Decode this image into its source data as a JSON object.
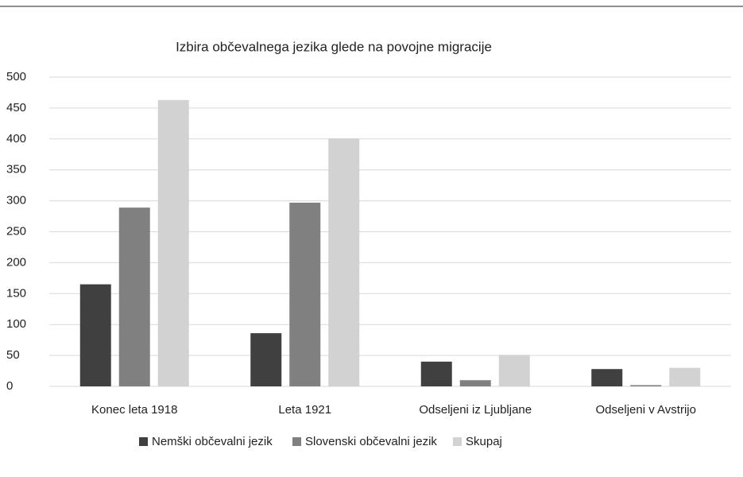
{
  "chart_data": {
    "type": "bar",
    "title": "Izbira občevalnega jezika glede na povojne migracije",
    "categories": [
      "Konec leta 1918",
      "Leta 1921",
      "Odseljeni iz Ljubljane",
      "Odseljeni v Avstrijo"
    ],
    "series": [
      {
        "name": "Nemški občevalni jezik",
        "color": "#404040",
        "values": [
          165,
          86,
          40,
          28
        ]
      },
      {
        "name": "Slovenski občevalni jezik",
        "color": "#808080",
        "values": [
          289,
          297,
          10,
          2
        ]
      },
      {
        "name": "Skupaj",
        "color": "#d2d2d2",
        "values": [
          463,
          401,
          51,
          30
        ]
      }
    ],
    "ylim": [
      0,
      500
    ],
    "yticks": [
      0,
      50,
      100,
      150,
      200,
      250,
      300,
      350,
      400,
      450,
      500
    ],
    "grid": true,
    "legend": "bottom"
  }
}
